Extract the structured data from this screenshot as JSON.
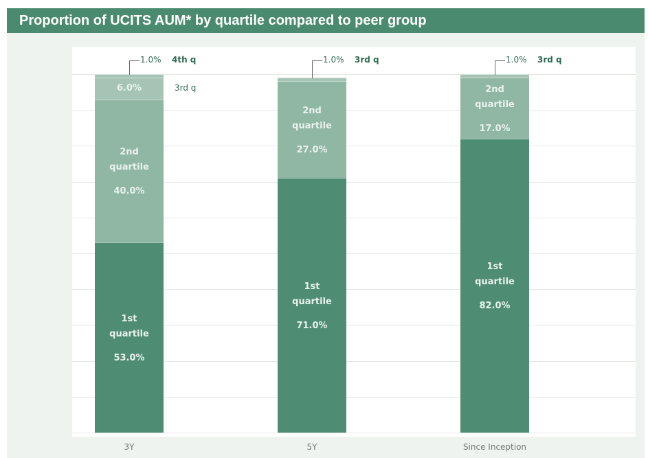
{
  "chart_data": {
    "type": "stacked_bar",
    "title": "Proportion of UCITS AUM* by quartile compared to peer group",
    "categories": [
      "3Y",
      "5Y",
      "Since Inception"
    ],
    "series": [
      {
        "name": "1st quartile",
        "color": "#4e8c74",
        "values": [
          53,
          71,
          82
        ],
        "value_labels": [
          "53.0%",
          "71.0%",
          "82.0%"
        ]
      },
      {
        "name": "2nd quartile",
        "color": "#90b6a4",
        "values": [
          40,
          27,
          17
        ],
        "value_labels": [
          "40.0%",
          "27.0%",
          "17.0%"
        ]
      },
      {
        "name": "3rd q",
        "color": "#a6c4b6",
        "values": [
          6,
          1,
          1
        ],
        "value_labels": [
          "6.0%",
          "1.0%",
          "1.0%"
        ]
      },
      {
        "name": "4th q",
        "color": "#a6c4b6",
        "values": [
          1,
          null,
          null
        ],
        "value_labels": [
          "1.0%",
          null,
          null
        ]
      }
    ],
    "ylim": [
      0,
      100
    ],
    "yticks": [
      0,
      10,
      20,
      30,
      40,
      50,
      60,
      70,
      80,
      90,
      100
    ],
    "grid": true
  }
}
